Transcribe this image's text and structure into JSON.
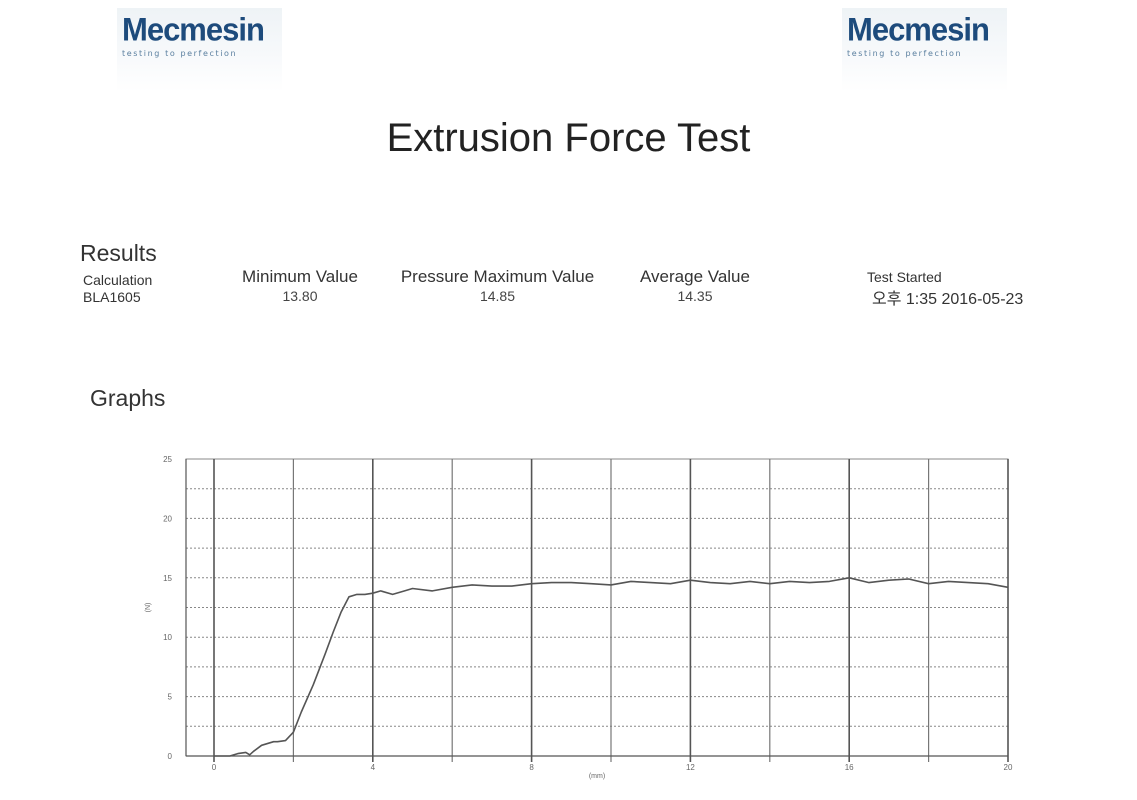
{
  "header": {
    "logo_left": {
      "name": "Mecmesin",
      "tagline": "testing to perfection"
    },
    "logo_right": {
      "name": "Mecmesin",
      "tagline": "testing to perfection"
    },
    "title": "Extrusion Force Test"
  },
  "results": {
    "heading": "Results",
    "calculation_label": "Calculation",
    "calculation_value": "BLA1605",
    "minimum_label": "Minimum Value",
    "minimum_value": "13.80",
    "maximum_label": "Pressure Maximum Value",
    "maximum_value": "14.85",
    "average_label": "Average Value",
    "average_value": "14.35",
    "test_started_label": "Test Started",
    "test_started_value": "오후 1:35  2016-05-23"
  },
  "graphs": {
    "heading": "Graphs"
  },
  "chart_data": {
    "type": "line",
    "title": "",
    "xlabel": "(mm)",
    "ylabel": "(N)",
    "xlim": [
      0,
      20
    ],
    "ylim": [
      0,
      25
    ],
    "x_ticks": [
      "0",
      "4",
      "8",
      "12",
      "16",
      "20"
    ],
    "y_ticks": [
      "0",
      "5",
      "10",
      "15",
      "20",
      "25"
    ],
    "grid": true,
    "legend": "none",
    "line_color": "#555555",
    "series": [
      {
        "x": [
          0.0,
          0.2,
          0.4,
          0.6,
          0.8,
          0.9,
          1.0,
          1.2,
          1.5,
          1.6,
          1.8,
          2.0,
          2.2,
          2.5,
          2.8,
          3.0,
          3.2,
          3.4,
          3.6,
          3.8,
          4.0,
          4.2,
          4.5,
          4.8,
          5.0,
          5.5,
          6.0,
          6.5,
          7.0,
          7.5,
          8.0,
          8.5,
          9.0,
          9.5,
          10.0,
          10.5,
          11.0,
          11.5,
          12.0,
          12.5,
          13.0,
          13.5,
          14.0,
          14.5,
          15.0,
          15.5,
          16.0,
          16.5,
          17.0,
          17.5,
          18.0,
          18.5,
          19.0,
          19.5,
          20.0
        ],
        "y": [
          0.0,
          0.0,
          0.0,
          0.2,
          0.3,
          0.1,
          0.4,
          0.9,
          1.2,
          1.2,
          1.3,
          2.0,
          3.7,
          6.0,
          8.6,
          10.4,
          12.1,
          13.4,
          13.6,
          13.6,
          13.7,
          13.9,
          13.6,
          13.9,
          14.1,
          13.9,
          14.2,
          14.4,
          14.3,
          14.3,
          14.5,
          14.6,
          14.6,
          14.5,
          14.4,
          14.7,
          14.6,
          14.5,
          14.8,
          14.6,
          14.5,
          14.7,
          14.5,
          14.7,
          14.6,
          14.7,
          15.0,
          14.6,
          14.8,
          14.9,
          14.5,
          14.7,
          14.6,
          14.5,
          14.2
        ]
      }
    ]
  }
}
